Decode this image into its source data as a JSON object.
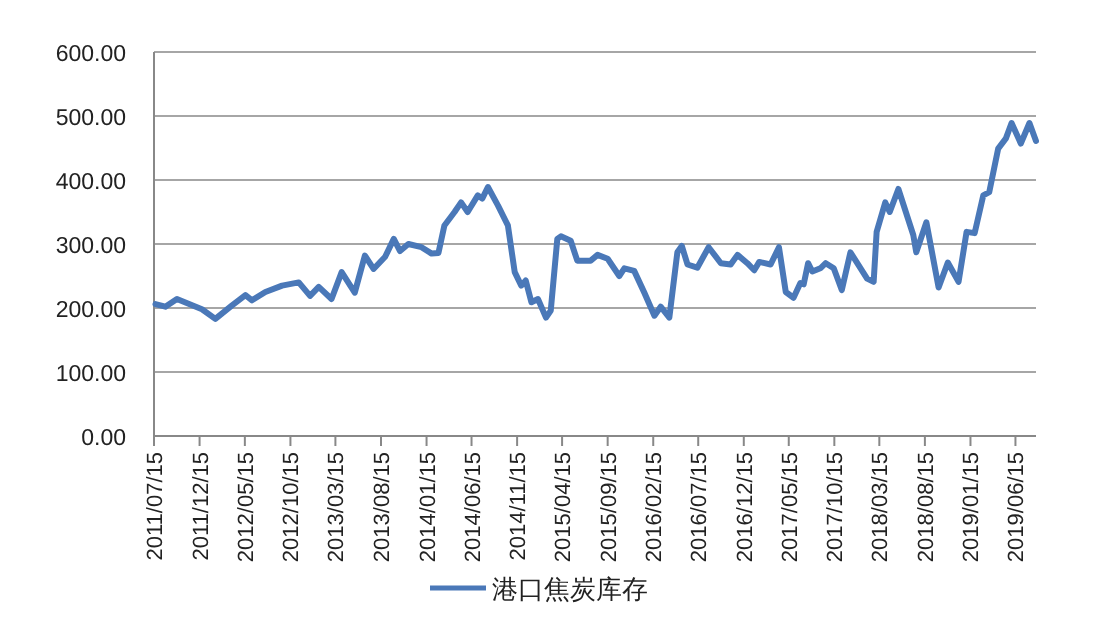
{
  "chart_data": {
    "type": "line",
    "x": [
      "2011-07-20",
      "2011-08-22",
      "2011-09-30",
      "2011-12-23",
      "2012-02-06",
      "2012-04-02",
      "2012-05-17",
      "2012-06-08",
      "2012-07-23",
      "2012-09-17",
      "2012-11-12",
      "2012-12-20",
      "2013-01-18",
      "2013-03-02",
      "2013-04-05",
      "2013-05-19",
      "2013-06-22",
      "2013-07-21",
      "2013-08-29",
      "2013-09-27",
      "2013-10-18",
      "2013-11-15",
      "2013-12-29",
      "2014-02-01",
      "2014-02-24",
      "2014-03-16",
      "2014-04-19",
      "2014-05-11",
      "2014-06-02",
      "2014-07-06",
      "2014-07-21",
      "2014-08-09",
      "2014-09-12",
      "2014-10-15",
      "2014-11-07",
      "2014-11-29",
      "2014-12-14",
      "2015-01-02",
      "2015-01-24",
      "2015-02-20",
      "2015-03-08",
      "2015-03-30",
      "2015-04-11",
      "2015-05-14",
      "2015-06-05",
      "2015-07-20",
      "2015-08-12",
      "2015-09-15",
      "2015-10-24",
      "2015-11-10",
      "2015-12-13",
      "2016-01-16",
      "2016-02-19",
      "2016-03-11",
      "2016-04-09",
      "2016-05-06",
      "2016-05-21",
      "2016-06-09",
      "2016-07-12",
      "2016-08-19",
      "2016-09-29",
      "2016-11-01",
      "2016-11-24",
      "2016-12-27",
      "2017-01-19",
      "2017-02-05",
      "2017-03-15",
      "2017-04-12",
      "2017-05-05",
      "2017-05-31",
      "2017-06-23",
      "2017-07-04",
      "2017-07-19",
      "2017-08-02",
      "2017-08-29",
      "2017-09-16",
      "2017-10-13",
      "2017-11-09",
      "2017-12-08",
      "2018-02-02",
      "2018-02-24",
      "2018-03-06",
      "2018-04-04",
      "2018-04-19",
      "2018-05-18",
      "2018-07-07",
      "2018-07-17",
      "2018-08-20",
      "2018-09-30",
      "2018-10-31",
      "2018-12-06",
      "2019-01-02",
      "2019-01-29",
      "2019-02-27",
      "2019-03-19",
      "2019-04-18",
      "2019-05-14",
      "2019-06-02",
      "2019-07-03",
      "2019-08-01",
      "2019-08-23"
    ],
    "series": [
      {
        "name": "港口焦炭库存",
        "color": "#4a78b8",
        "values": [
          206,
          202,
          214,
          198,
          183,
          204,
          220,
          212,
          225,
          235,
          240,
          219,
          233,
          214,
          256,
          224,
          282,
          261,
          280,
          308,
          289,
          300,
          295,
          285,
          286,
          329,
          350,
          365,
          350,
          376,
          371,
          389,
          360,
          329,
          256,
          235,
          243,
          209,
          214,
          185,
          196,
          308,
          312,
          305,
          274,
          274,
          283,
          277,
          250,
          262,
          258,
          224,
          188,
          202,
          185,
          287,
          297,
          268,
          263,
          295,
          270,
          268,
          283,
          270,
          259,
          272,
          268,
          295,
          225,
          216,
          239,
          237,
          270,
          257,
          262,
          270,
          262,
          228,
          287,
          246,
          241,
          319,
          365,
          350,
          386,
          314,
          287,
          334,
          232,
          271,
          241,
          319,
          317,
          376,
          381,
          449,
          465,
          489,
          457,
          489,
          461
        ]
      }
    ],
    "xlim": [
      "2011-07-15",
      "2019-08-23"
    ],
    "xticks": [
      {
        "value": "2011-07-15",
        "label": "2011/07/15"
      },
      {
        "value": "2011-12-15",
        "label": "2011/12/15"
      },
      {
        "value": "2012-05-15",
        "label": "2012/05/15"
      },
      {
        "value": "2012-10-15",
        "label": "2012/10/15"
      },
      {
        "value": "2013-03-15",
        "label": "2013/03/15"
      },
      {
        "value": "2013-08-15",
        "label": "2013/08/15"
      },
      {
        "value": "2014-01-15",
        "label": "2014/01/15"
      },
      {
        "value": "2014-06-15",
        "label": "2014/06/15"
      },
      {
        "value": "2014-11-15",
        "label": "2014/11/15"
      },
      {
        "value": "2015-04-15",
        "label": "2015/04/15"
      },
      {
        "value": "2015-09-15",
        "label": "2015/09/15"
      },
      {
        "value": "2016-02-15",
        "label": "2016/02/15"
      },
      {
        "value": "2016-07-15",
        "label": "2016/07/15"
      },
      {
        "value": "2016-12-15",
        "label": "2016/12/15"
      },
      {
        "value": "2017-05-15",
        "label": "2017/05/15"
      },
      {
        "value": "2017-10-15",
        "label": "2017/10/15"
      },
      {
        "value": "2018-03-15",
        "label": "2018/03/15"
      },
      {
        "value": "2018-08-15",
        "label": "2018/08/15"
      },
      {
        "value": "2019-01-15",
        "label": "2019/01/15"
      },
      {
        "value": "2019-06-15",
        "label": "2019/06/15"
      }
    ],
    "ylim": [
      0,
      600
    ],
    "yticks": [
      {
        "value": 0,
        "label": "0.00"
      },
      {
        "value": 100,
        "label": "100.00"
      },
      {
        "value": 200,
        "label": "200.00"
      },
      {
        "value": 300,
        "label": "300.00"
      },
      {
        "value": 400,
        "label": "400.00"
      },
      {
        "value": 500,
        "label": "500.00"
      },
      {
        "value": 600,
        "label": "600.00"
      }
    ],
    "grid": "y",
    "legend": "bottom",
    "marker": "none",
    "line_style": "solid"
  }
}
